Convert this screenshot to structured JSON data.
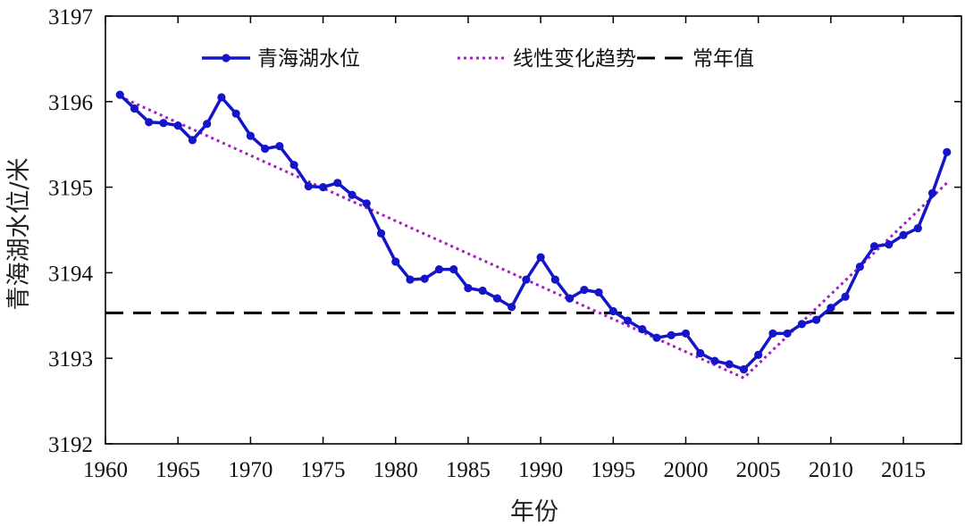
{
  "chart_data": {
    "type": "line",
    "title": "",
    "xlabel": "年份",
    "ylabel": "青海湖水位/米",
    "xlim": [
      1960,
      2019
    ],
    "ylim": [
      3192,
      3197
    ],
    "x_ticks": [
      1960,
      1965,
      1970,
      1975,
      1980,
      1985,
      1990,
      1995,
      2000,
      2005,
      2010,
      2015
    ],
    "y_ticks": [
      3192,
      3193,
      3194,
      3195,
      3196,
      3197
    ],
    "grid": false,
    "legend_position": "top",
    "series": [
      {
        "name": "青海湖水位",
        "style": "solid-line-with-dots",
        "color": "#1414c8",
        "x": [
          1961,
          1962,
          1963,
          1964,
          1965,
          1966,
          1967,
          1968,
          1969,
          1970,
          1971,
          1972,
          1973,
          1974,
          1975,
          1976,
          1977,
          1978,
          1979,
          1980,
          1981,
          1982,
          1983,
          1984,
          1985,
          1986,
          1987,
          1988,
          1989,
          1990,
          1991,
          1992,
          1993,
          1994,
          1995,
          1996,
          1997,
          1998,
          1999,
          2000,
          2001,
          2002,
          2003,
          2004,
          2005,
          2006,
          2007,
          2008,
          2009,
          2010,
          2011,
          2012,
          2013,
          2014,
          2015,
          2016,
          2017,
          2018
        ],
        "values": [
          3196.08,
          3195.92,
          3195.76,
          3195.75,
          3195.72,
          3195.55,
          3195.74,
          3196.05,
          3195.86,
          3195.6,
          3195.45,
          3195.48,
          3195.26,
          3195.01,
          3195.0,
          3195.05,
          3194.91,
          3194.81,
          3194.46,
          3194.13,
          3193.92,
          3193.93,
          3194.04,
          3194.04,
          3193.82,
          3193.79,
          3193.7,
          3193.6,
          3193.92,
          3194.18,
          3193.92,
          3193.7,
          3193.8,
          3193.77,
          3193.55,
          3193.44,
          3193.34,
          3193.24,
          3193.27,
          3193.29,
          3193.06,
          3192.97,
          3192.93,
          3192.87,
          3193.04,
          3193.29,
          3193.29,
          3193.4,
          3193.45,
          3193.59,
          3193.72,
          3194.07,
          3194.31,
          3194.33,
          3194.44,
          3194.52,
          3194.93,
          3195.41
        ]
      },
      {
        "name": "线性变化趋势",
        "style": "dotted",
        "color": "#a020c0",
        "x": [
          1961,
          2004,
          2018
        ],
        "values": [
          3196.06,
          3192.77,
          3195.05
        ]
      },
      {
        "name": "常年值",
        "style": "dashed",
        "color": "#000000",
        "x": [
          1960,
          2019
        ],
        "values": [
          3193.53,
          3193.53
        ]
      }
    ]
  }
}
